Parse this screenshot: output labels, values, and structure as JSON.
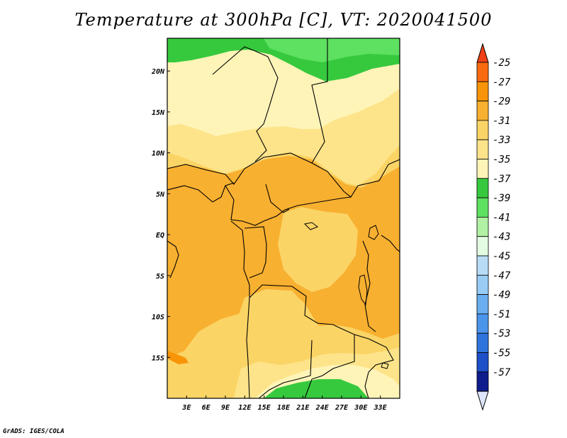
{
  "title": "Temperature at 300hPa [C], VT: 2020041500",
  "footer": "GrADS: IGES/COLA",
  "map": {
    "lon_range": [
      0,
      36
    ],
    "lat_range": [
      -20,
      24
    ],
    "lon_ticks": [
      "3E",
      "6E",
      "9E",
      "12E",
      "15E",
      "18E",
      "21E",
      "24E",
      "27E",
      "30E",
      "33E"
    ],
    "lat_ticks": [
      "20N",
      "15N",
      "10N",
      "5N",
      "EQ",
      "5S",
      "10S",
      "15S"
    ]
  },
  "colorbar": {
    "bins": [
      {
        "label": "-25",
        "color": "#fa6a10"
      },
      {
        "label": "-27",
        "color": "#f89408"
      },
      {
        "label": "-29",
        "color": "#f8b030"
      },
      {
        "label": "-31",
        "color": "#fbd466"
      },
      {
        "label": "-33",
        "color": "#fde48a"
      },
      {
        "label": "-35",
        "color": "#fff4b8"
      },
      {
        "label": "-37",
        "color": "#36c93e"
      },
      {
        "label": "-39",
        "color": "#5ee060"
      },
      {
        "label": "-41",
        "color": "#b0f1a4"
      },
      {
        "label": "-43",
        "color": "#e2fbe2"
      },
      {
        "label": "-45",
        "color": "#b8dcf6"
      },
      {
        "label": "-47",
        "color": "#98ccf5"
      },
      {
        "label": "-49",
        "color": "#6aaef0"
      },
      {
        "label": "-51",
        "color": "#4a95ea"
      },
      {
        "label": "-53",
        "color": "#2f74dc"
      },
      {
        "label": "-55",
        "color": "#1e50c8"
      },
      {
        "label": "-57",
        "color": "#0f1c8c"
      }
    ],
    "top_arrow_color": "#f0401a",
    "bottom_arrow_color": "#dde6fb"
  },
  "colors": {
    "temp_27": "#f89408",
    "temp_29": "#f8b030",
    "temp_31": "#fbd466",
    "temp_33": "#fde48a",
    "temp_35": "#fff4b8",
    "temp_37": "#36c93e",
    "temp_39": "#5ee060"
  }
}
